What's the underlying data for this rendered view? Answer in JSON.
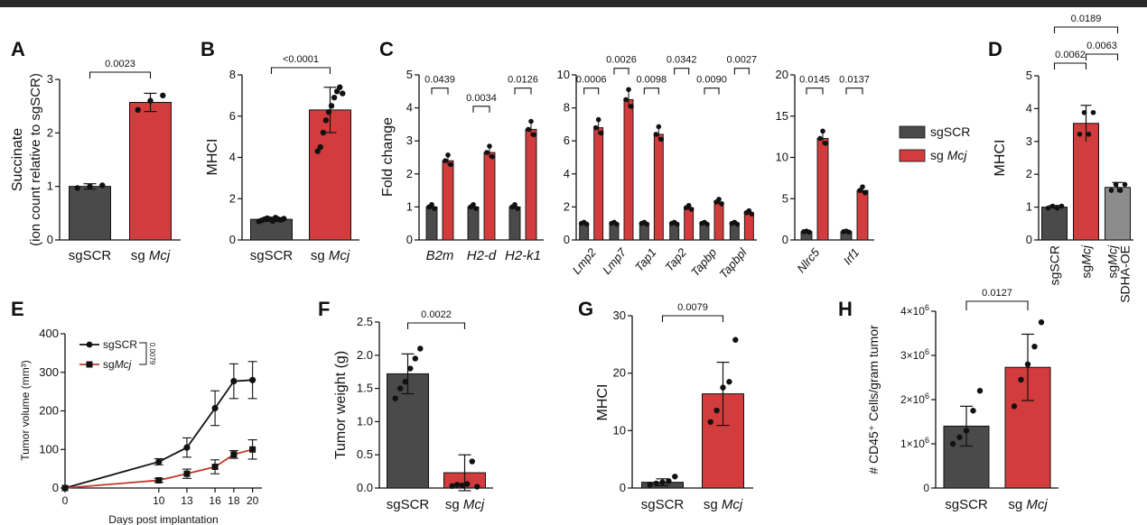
{
  "chart_data": [
    {
      "panel": "A",
      "type": "bar",
      "ylabel": "Succinate",
      "ylabel2": "(ion count relative to sgSCR)",
      "ylim": [
        0,
        3
      ],
      "yticks": [
        "0",
        "1",
        "2",
        "3"
      ],
      "categories": [
        "sgSCR",
        "sgMcj"
      ],
      "category_labels": [
        {
          "plain": "sgSCR",
          "ital": ""
        },
        {
          "plain": "sg ",
          "ital": "Mcj"
        }
      ],
      "values": [
        1.0,
        2.57
      ],
      "errors": [
        0.05,
        0.17
      ],
      "colors": [
        "#4a4a4a",
        "#d33c3c"
      ],
      "points": [
        [
          0.97,
          1.0,
          1.02
        ],
        [
          2.43,
          2.6,
          2.7
        ]
      ],
      "brackets": [
        {
          "from": 0,
          "to": 1,
          "label": "0.0023"
        }
      ]
    },
    {
      "panel": "B",
      "type": "bar",
      "ylabel": "MHCI",
      "ylim": [
        0,
        8
      ],
      "yticks": [
        "0",
        "2",
        "4",
        "6",
        "8"
      ],
      "categories": [
        "sgSCR",
        "sgMcj"
      ],
      "category_labels": [
        {
          "plain": "sgSCR",
          "ital": ""
        },
        {
          "plain": "sg ",
          "ital": "Mcj"
        }
      ],
      "values": [
        1.0,
        6.3
      ],
      "errors": [
        0.1,
        1.1
      ],
      "colors": [
        "#4a4a4a",
        "#d33c3c"
      ],
      "points": [
        [
          0.9,
          0.95,
          1.0,
          1.05,
          1.0,
          0.92,
          1.08,
          1.0,
          0.97,
          1.03
        ],
        [
          4.3,
          4.5,
          5.2,
          5.8,
          6.2,
          6.5,
          6.9,
          7.2,
          7.4,
          7.1
        ]
      ],
      "brackets": [
        {
          "from": 0,
          "to": 1,
          "label": "<0.0001"
        }
      ]
    },
    {
      "panel": "C",
      "type": "bar",
      "ylabel": "Fold change",
      "ylim": [
        0,
        5
      ],
      "yticks": [
        "0",
        "1",
        "2",
        "3",
        "4",
        "5"
      ],
      "categories": [
        "B2m",
        "H2-d",
        "H2-k1"
      ],
      "series_values": [
        [
          1.0,
          1.0,
          1.0
        ],
        [
          2.4,
          2.65,
          3.35
        ]
      ],
      "colors": [
        "#4a4a4a",
        "#d33c3c"
      ],
      "brackets": [
        {
          "cat": 0,
          "label": "0.0439",
          "level": 4.6
        },
        {
          "cat": 1,
          "label": "0.0034",
          "level": 4.05
        },
        {
          "cat": 2,
          "label": "0.0126",
          "level": 4.6
        }
      ]
    },
    {
      "panel": "C2",
      "type": "bar",
      "ylim": [
        0,
        10
      ],
      "yticks": [
        "0",
        "2",
        "4",
        "6",
        "8",
        "10"
      ],
      "categories": [
        "Lmp2",
        "Lmp7",
        "Tap1",
        "Tap2",
        "Tapbp",
        "Tapbpl"
      ],
      "series_values": [
        [
          1.0,
          1.0,
          1.0,
          1.0,
          1.0,
          1.0
        ],
        [
          6.8,
          8.5,
          6.4,
          1.95,
          2.3,
          1.65
        ]
      ],
      "colors": [
        "#4a4a4a",
        "#d33c3c"
      ],
      "brackets": [
        {
          "cat": 0,
          "label": "0.0006",
          "level": 9.2
        },
        {
          "cat": 1,
          "label": "0.0026",
          "level": 10.4
        },
        {
          "cat": 2,
          "label": "0.0098",
          "level": 9.2
        },
        {
          "cat": 3,
          "label": "0.0342",
          "level": 10.4
        },
        {
          "cat": 4,
          "label": "0.0090",
          "level": 9.2
        },
        {
          "cat": 5,
          "label": "0.0027",
          "level": 10.4
        }
      ]
    },
    {
      "panel": "C3",
      "type": "bar",
      "ylim": [
        0,
        20
      ],
      "yticks": [
        "0",
        "5",
        "10",
        "15",
        "20"
      ],
      "categories": [
        "Nlrc5",
        "Irf1"
      ],
      "series_values": [
        [
          1.0,
          1.0
        ],
        [
          12.3,
          6.0
        ]
      ],
      "colors": [
        "#4a4a4a",
        "#d33c3c"
      ],
      "brackets": [
        {
          "cat": 0,
          "label": "0.0145",
          "level": 18.4
        },
        {
          "cat": 1,
          "label": "0.0137",
          "level": 18.4
        }
      ],
      "legend": [
        {
          "plain": "sgSCR",
          "ital": ""
        },
        {
          "plain": "sg ",
          "ital": "Mcj"
        }
      ]
    },
    {
      "panel": "D",
      "type": "bar",
      "ylabel": "MHCI",
      "ylim": [
        0,
        5
      ],
      "yticks": [
        "0",
        "1",
        "2",
        "3",
        "4",
        "5"
      ],
      "categories": [
        "sgSCR",
        "sgMcj",
        "sgMcj SDHA-OE"
      ],
      "values": [
        1.0,
        3.55,
        1.6
      ],
      "errors": [
        0.05,
        0.55,
        0.15
      ],
      "colors": [
        "#4a4a4a",
        "#d33c3c",
        "#8c8c8c"
      ],
      "brackets": [
        {
          "from": 0,
          "to": 1,
          "label": "0.0062"
        },
        {
          "from": 1,
          "to": 2,
          "label": "0.0063"
        },
        {
          "from": 0,
          "to": 2,
          "label": "0.0189"
        }
      ]
    },
    {
      "panel": "E",
      "type": "line",
      "xlabel": "Days post implantation",
      "ylabel": "Tumor volume (mm³)",
      "x": [
        0,
        10,
        13,
        16,
        18,
        20
      ],
      "xlim": [
        0,
        21
      ],
      "ylim": [
        0,
        400
      ],
      "xticks": [
        "0",
        "10",
        "13",
        "16",
        "18",
        "20"
      ],
      "yticks": [
        "0",
        "100",
        "200",
        "300",
        "400"
      ],
      "series": [
        {
          "name": "sgSCR",
          "values": [
            0,
            68,
            105,
            207,
            277,
            280
          ],
          "errors": [
            0,
            8,
            25,
            45,
            45,
            48
          ],
          "color": "#111111",
          "marker": "circle"
        },
        {
          "name": "sgMcj",
          "values": [
            0,
            20,
            37,
            55,
            87,
            100
          ],
          "errors": [
            0,
            5,
            12,
            18,
            10,
            25
          ],
          "color": "#c0392b",
          "marker": "square"
        }
      ],
      "legend_entries": [
        {
          "plain": "sgSCR",
          "ital": ""
        },
        {
          "plain": "sg",
          "ital": "Mcj"
        }
      ],
      "pvalue": "0.0079"
    },
    {
      "panel": "F",
      "type": "bar",
      "ylabel": "Tumor weight (g)",
      "ylim": [
        0,
        2.5
      ],
      "yticks": [
        "0.0",
        "0.5",
        "1.0",
        "1.5",
        "2.0",
        "2.5"
      ],
      "categories": [
        "sgSCR",
        "sgMcj"
      ],
      "category_labels": [
        {
          "plain": "sgSCR",
          "ital": ""
        },
        {
          "plain": "sg ",
          "ital": "Mcj"
        }
      ],
      "values": [
        1.72,
        0.23
      ],
      "errors": [
        0.3,
        0.27
      ],
      "colors": [
        "#4a4a4a",
        "#d33c3c"
      ],
      "points": [
        [
          1.35,
          1.5,
          1.6,
          1.8,
          1.95,
          2.1
        ],
        [
          0.03,
          0.05,
          0.04,
          0.06,
          0.4,
          0.02
        ]
      ],
      "brackets": [
        {
          "from": 0,
          "to": 1,
          "label": "0.0022"
        }
      ]
    },
    {
      "panel": "G",
      "type": "bar",
      "ylabel": "MHCI",
      "ylim": [
        0,
        30
      ],
      "yticks": [
        "0",
        "10",
        "20",
        "30"
      ],
      "categories": [
        "sgSCR",
        "sgMcj"
      ],
      "category_labels": [
        {
          "plain": "sgSCR",
          "ital": ""
        },
        {
          "plain": "sg ",
          "ital": "Mcj"
        }
      ],
      "values": [
        1.0,
        16.4
      ],
      "errors": [
        0.6,
        5.5
      ],
      "colors": [
        "#4a4a4a",
        "#d33c3c"
      ],
      "points": [
        [
          0.6,
          0.8,
          1.0,
          1.2,
          2.0
        ],
        [
          11.5,
          13.5,
          17.5,
          18.5,
          25.8
        ]
      ],
      "brackets": [
        {
          "from": 0,
          "to": 1,
          "label": "0.0079"
        }
      ]
    },
    {
      "panel": "H",
      "type": "bar",
      "ylabel": "# CD45⁺ Cells/gram tumor",
      "ylim": [
        0,
        4000000
      ],
      "ytick_values": [
        0,
        1000000,
        2000000,
        3000000,
        4000000
      ],
      "yticks": [
        {
          "base": "0",
          "exp": ""
        },
        {
          "base": "1×10",
          "exp": "6"
        },
        {
          "base": "2×10",
          "exp": "6"
        },
        {
          "base": "3×10",
          "exp": "6"
        },
        {
          "base": "4×10",
          "exp": "6"
        }
      ],
      "categories": [
        "sgSCR",
        "sgMcj"
      ],
      "category_labels": [
        {
          "plain": "sgSCR",
          "ital": ""
        },
        {
          "plain": "sg ",
          "ital": "Mcj"
        }
      ],
      "values": [
        1400000,
        2730000
      ],
      "errors": [
        450000,
        750000
      ],
      "colors": [
        "#4a4a4a",
        "#d33c3c"
      ],
      "points": [
        [
          1000000,
          1150000,
          1300000,
          1750000,
          2200000
        ],
        [
          1850000,
          2450000,
          2800000,
          3200000,
          3750000
        ]
      ],
      "brackets": [
        {
          "from": 0,
          "to": 1,
          "label": "0.0127"
        }
      ]
    }
  ],
  "panel_labels": [
    "A",
    "B",
    "C",
    "D",
    "E",
    "F",
    "G",
    "H"
  ]
}
